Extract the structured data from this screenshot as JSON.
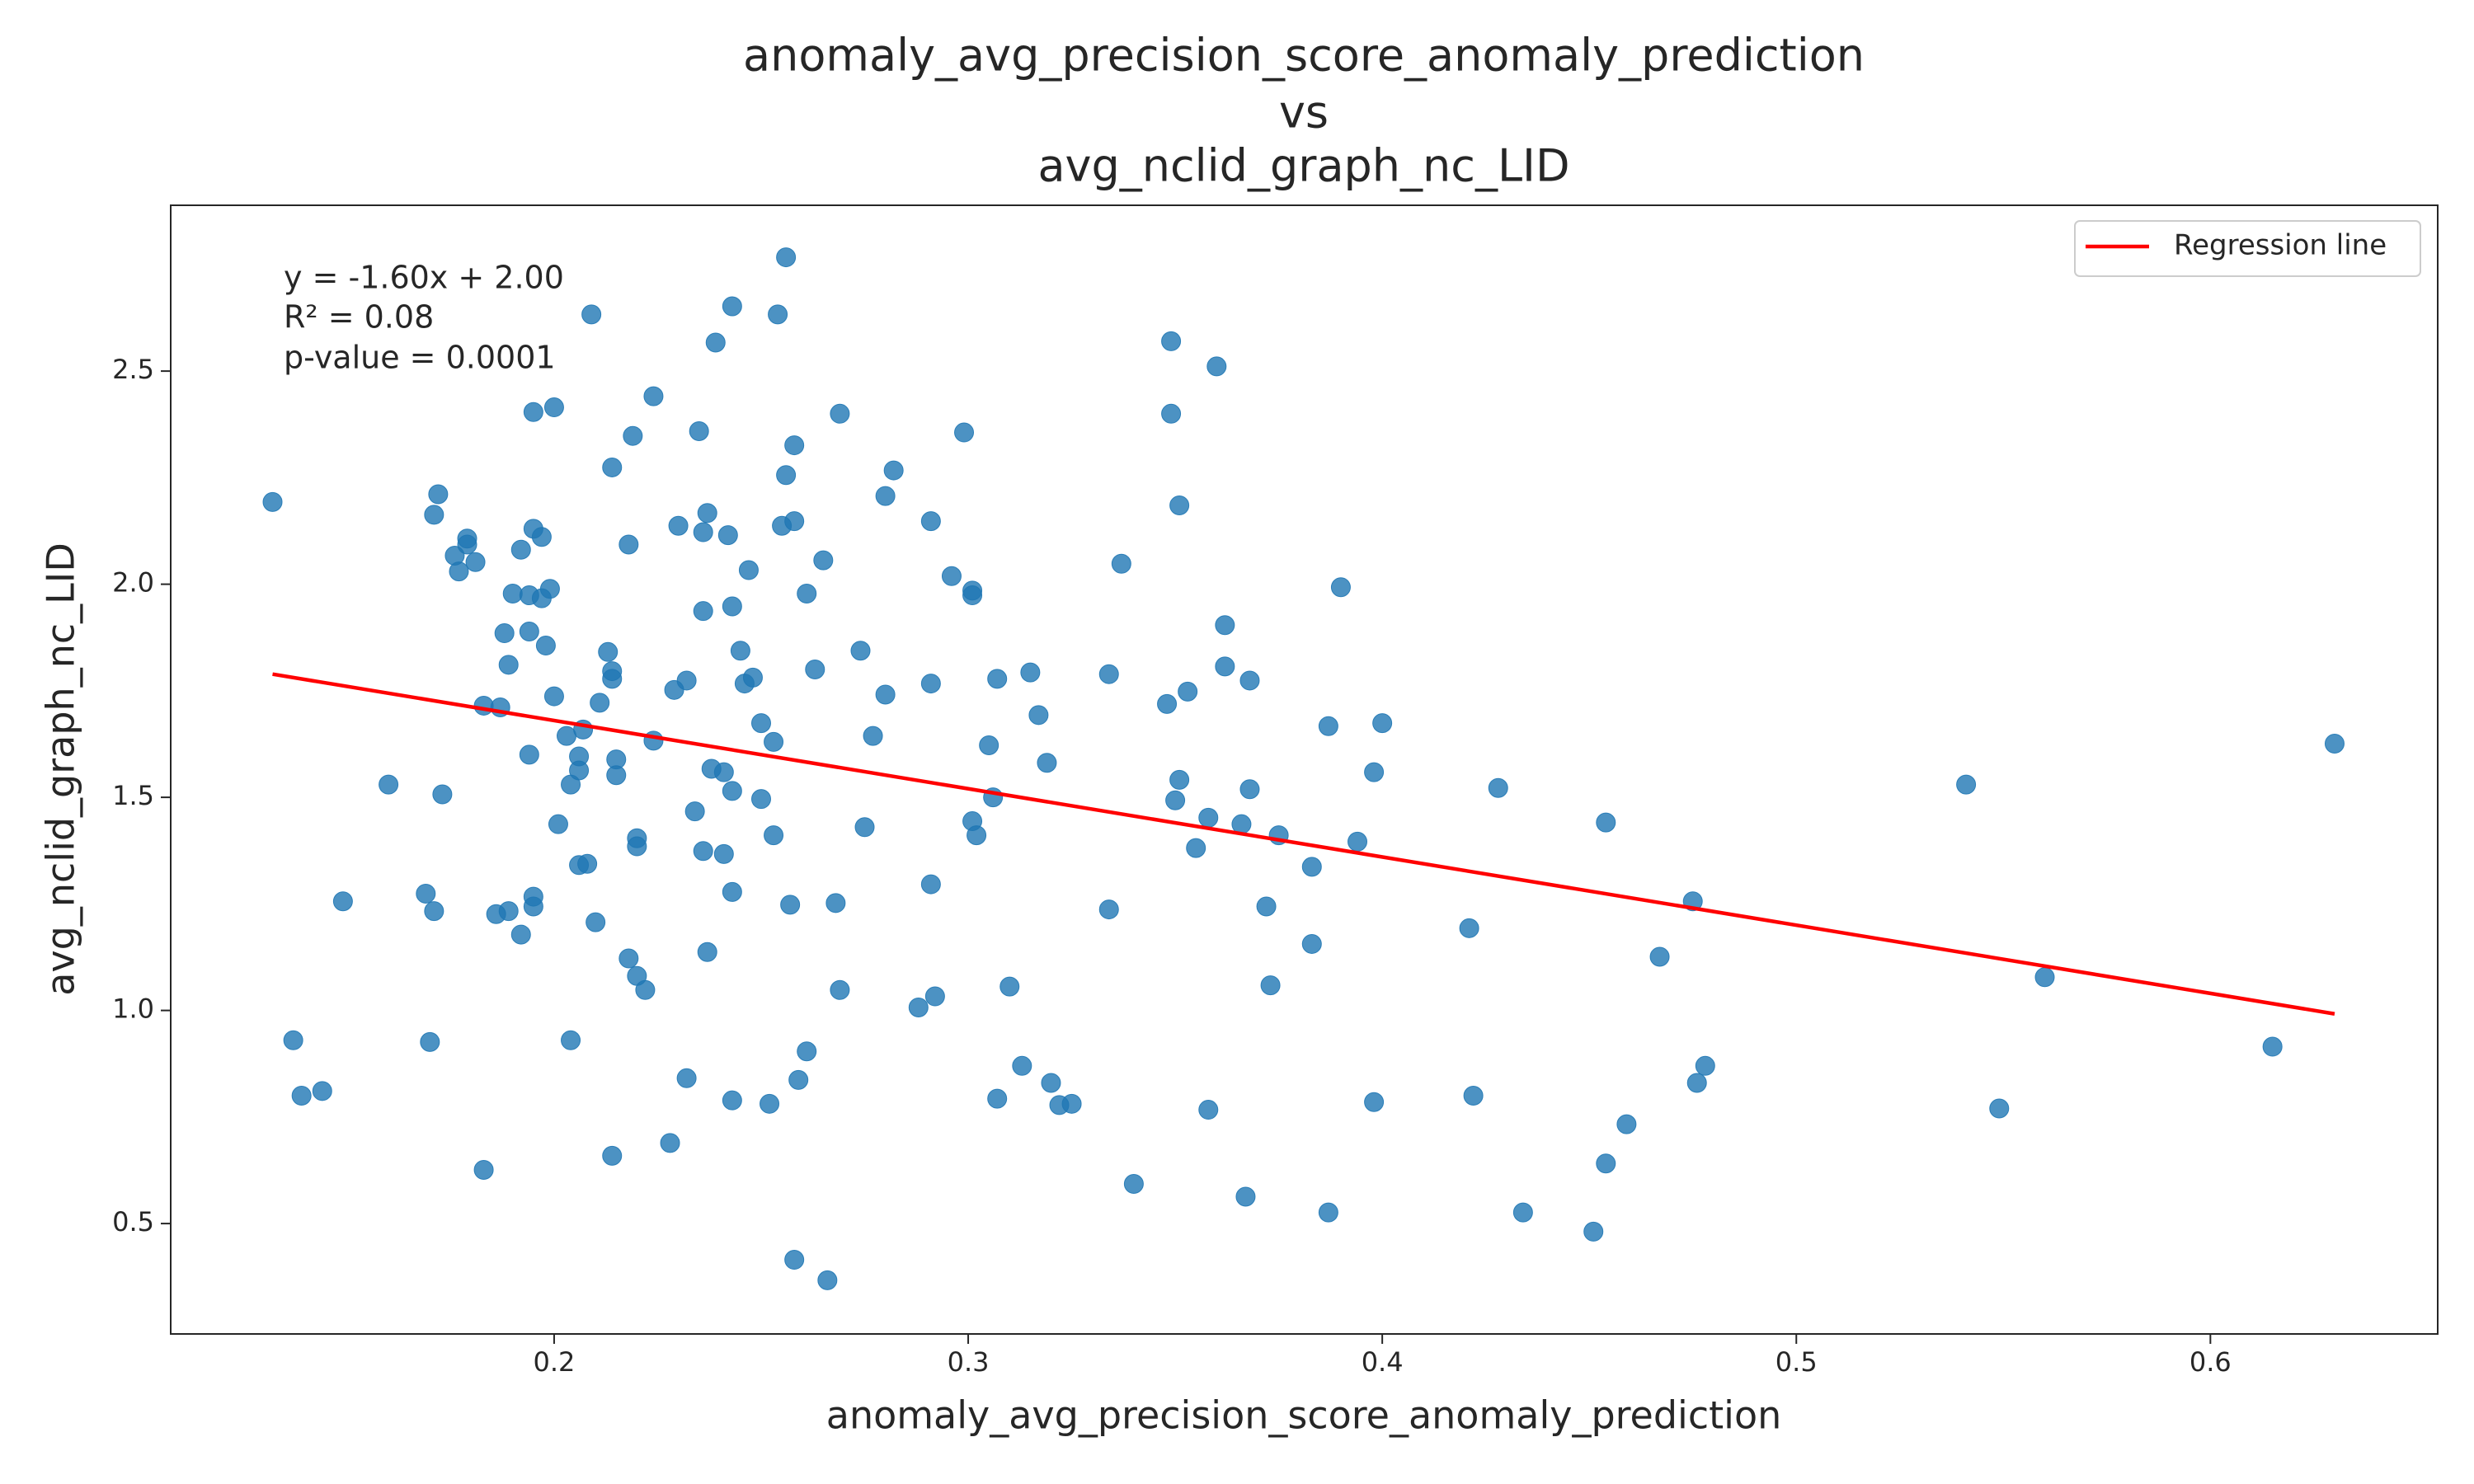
{
  "chart_data": {
    "type": "scatter",
    "title": [
      "anomaly_avg_precision_score_anomaly_prediction",
      "vs",
      "avg_nclid_graph_nc_LID"
    ],
    "x_label": "anomaly_avg_precision_score_anomaly_prediction",
    "y_label": "avg_nclid_graph_nc_LID",
    "annotations": [
      "y = -1.60x + 2.00",
      "R² = 0.08",
      "p-value = 0.0001"
    ],
    "xlim": [
      0.1074,
      0.6549
    ],
    "ylim": [
      0.241,
      2.889
    ],
    "xticks": [
      0.2,
      0.3,
      0.4,
      0.5,
      0.6
    ],
    "yticks": [
      0.5,
      {
        "value": 1,
        "label": "1.0"
      },
      1.5,
      {
        "value": 2,
        "label": "2.0"
      },
      2.5
    ],
    "grid": false,
    "legend": "upper right",
    "series": [
      {
        "color": "#1f77b4",
        "x": [
          0.132,
          0.137,
          0.139,
          0.144,
          0.149,
          0.16,
          0.169,
          0.17,
          0.171,
          0.172,
          0.171,
          0.173,
          0.176,
          0.177,
          0.179,
          0.179,
          0.181,
          0.183,
          0.183,
          0.187,
          0.186,
          0.188,
          0.189,
          0.189,
          0.19,
          0.192,
          0.192,
          0.194,
          0.194,
          0.194,
          0.195,
          0.195,
          0.195,
          0.195,
          0.197,
          0.197,
          0.198,
          0.199,
          0.2,
          0.2,
          0.201,
          0.203,
          0.204,
          0.204,
          0.206,
          0.206,
          0.206,
          0.207,
          0.208,
          0.209,
          0.21,
          0.211,
          0.213,
          0.214,
          0.214,
          0.214,
          0.214,
          0.215,
          0.215,
          0.218,
          0.218,
          0.219,
          0.22,
          0.22,
          0.22,
          0.222,
          0.224,
          0.224,
          0.228,
          0.23,
          0.229,
          0.232,
          0.232,
          0.234,
          0.235,
          0.236,
          0.236,
          0.236,
          0.237,
          0.237,
          0.239,
          0.238,
          0.241,
          0.241,
          0.242,
          0.243,
          0.243,
          0.243,
          0.243,
          0.243,
          0.245,
          0.246,
          0.247,
          0.248,
          0.25,
          0.25,
          0.252,
          0.253,
          0.253,
          0.254,
          0.255,
          0.256,
          0.256,
          0.257,
          0.258,
          0.258,
          0.258,
          0.259,
          0.261,
          0.261,
          0.263,
          0.265,
          0.266,
          0.268,
          0.269,
          0.269,
          0.274,
          0.275,
          0.277,
          0.28,
          0.28,
          0.282,
          0.288,
          0.291,
          0.291,
          0.291,
          0.292,
          0.296,
          0.299,
          0.301,
          0.301,
          0.301,
          0.302,
          0.305,
          0.306,
          0.307,
          0.307,
          0.31,
          0.313,
          0.315,
          0.317,
          0.319,
          0.32,
          0.322,
          0.325,
          0.334,
          0.334,
          0.337,
          0.34,
          0.348,
          0.349,
          0.349,
          0.35,
          0.351,
          0.351,
          0.353,
          0.355,
          0.358,
          0.358,
          0.36,
          0.362,
          0.362,
          0.366,
          0.367,
          0.368,
          0.368,
          0.372,
          0.373,
          0.375,
          0.383,
          0.383,
          0.387,
          0.387,
          0.39,
          0.394,
          0.398,
          0.398,
          0.4,
          0.421,
          0.422,
          0.428,
          0.434,
          0.451,
          0.454,
          0.454,
          0.459,
          0.467,
          0.475,
          0.476,
          0.478,
          0.541,
          0.549,
          0.56,
          0.615,
          0.63
        ],
        "y": [
          2.193,
          0.93,
          0.8,
          0.811,
          1.256,
          1.53,
          1.274,
          0.926,
          1.233,
          2.211,
          2.163,
          1.507,
          2.067,
          2.03,
          2.093,
          2.107,
          2.052,
          1.715,
          0.626,
          1.711,
          1.226,
          1.885,
          1.811,
          1.233,
          1.978,
          1.178,
          2.081,
          1.6,
          1.889,
          1.974,
          2.13,
          2.404,
          1.244,
          1.267,
          1.967,
          2.111,
          1.856,
          1.989,
          2.415,
          1.737,
          1.437,
          1.644,
          1.53,
          0.93,
          1.341,
          1.596,
          1.563,
          1.659,
          1.344,
          2.633,
          1.207,
          1.722,
          1.841,
          0.659,
          1.778,
          1.796,
          2.274,
          1.589,
          1.552,
          2.093,
          1.122,
          2.348,
          1.404,
          1.081,
          1.385,
          1.048,
          2.441,
          1.633,
          0.689,
          2.137,
          1.752,
          0.841,
          1.774,
          1.467,
          2.359,
          2.122,
          1.937,
          1.374,
          1.137,
          2.167,
          2.567,
          1.567,
          1.367,
          1.559,
          2.115,
          2.652,
          1.948,
          1.515,
          1.278,
          0.789,
          1.844,
          1.767,
          2.033,
          1.781,
          1.674,
          1.496,
          0.781,
          1.411,
          1.63,
          2.633,
          2.137,
          2.256,
          2.767,
          1.248,
          0.415,
          2.148,
          2.326,
          0.837,
          1.978,
          0.904,
          1.8,
          2.056,
          0.367,
          1.252,
          1.048,
          2.4,
          1.844,
          1.43,
          1.644,
          2.207,
          1.741,
          2.267,
          1.007,
          1.296,
          2.148,
          1.767,
          1.033,
          2.019,
          2.356,
          1.985,
          1.974,
          1.444,
          1.411,
          1.622,
          1.5,
          1.778,
          0.793,
          1.056,
          0.87,
          1.793,
          1.693,
          1.581,
          0.83,
          0.778,
          0.781,
          1.789,
          1.237,
          2.048,
          0.593,
          1.719,
          2.57,
          2.4,
          1.493,
          2.185,
          1.541,
          1.748,
          1.381,
          1.452,
          0.767,
          2.511,
          1.807,
          1.904,
          1.437,
          0.563,
          1.519,
          1.774,
          1.244,
          1.059,
          1.411,
          1.156,
          1.337,
          0.526,
          1.667,
          1.993,
          1.396,
          1.559,
          0.785,
          1.674,
          1.193,
          0.8,
          1.522,
          0.526,
          0.481,
          0.641,
          1.441,
          0.733,
          1.126,
          1.256,
          0.83,
          0.87,
          1.53,
          0.77,
          1.078,
          0.915,
          1.626
        ]
      },
      {
        "name": "Regression line",
        "type": "line",
        "color": "#ff0000",
        "x": [
          0.132,
          0.63
        ],
        "y": [
          1.789,
          0.992
        ]
      }
    ]
  }
}
